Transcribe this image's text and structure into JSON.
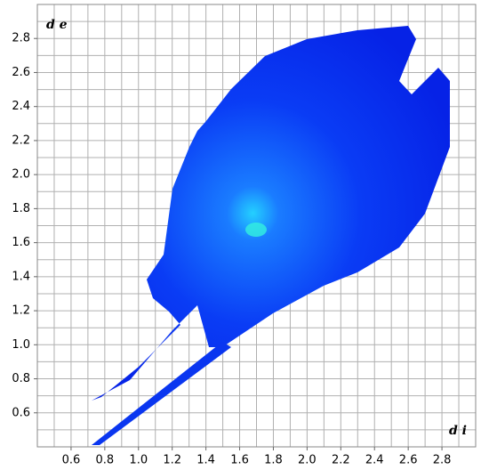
{
  "chart_data": {
    "type": "fingerprint",
    "x_label": "d i",
    "y_label": "d e",
    "xlim": [
      0.4,
      3.0
    ],
    "ylim": [
      0.4,
      3.0
    ],
    "xticks": [
      0.6,
      0.8,
      {
        "value": 1.0,
        "label": "1.0"
      },
      1.2,
      1.4,
      1.6,
      1.8,
      {
        "value": 2.0,
        "label": "2.0"
      },
      2.2,
      2.4,
      2.6,
      2.8
    ],
    "yticks": [
      0.6,
      0.8,
      {
        "value": 1.0,
        "label": "1.0"
      },
      1.2,
      1.4,
      1.6,
      1.8,
      {
        "value": 2.0,
        "label": "2.0"
      },
      2.2,
      2.4,
      2.6,
      2.8
    ],
    "xgrid": [
      0.5,
      0.6,
      0.7,
      0.8,
      0.9,
      1.0,
      1.1,
      1.2,
      1.3,
      1.4,
      1.5,
      1.6,
      1.7,
      1.8,
      1.9,
      2.0,
      2.1,
      2.2,
      2.3,
      2.4,
      2.5,
      2.6,
      2.7,
      2.8,
      2.9
    ],
    "ygrid": [
      0.5,
      0.6,
      0.7,
      0.8,
      0.9,
      1.0,
      1.1,
      1.2,
      1.3,
      1.4,
      1.5,
      1.6,
      1.7,
      1.8,
      1.9,
      2.0,
      2.1,
      2.2,
      2.3,
      2.4,
      2.5,
      2.6,
      2.7,
      2.8,
      2.9
    ],
    "grid": true
  }
}
